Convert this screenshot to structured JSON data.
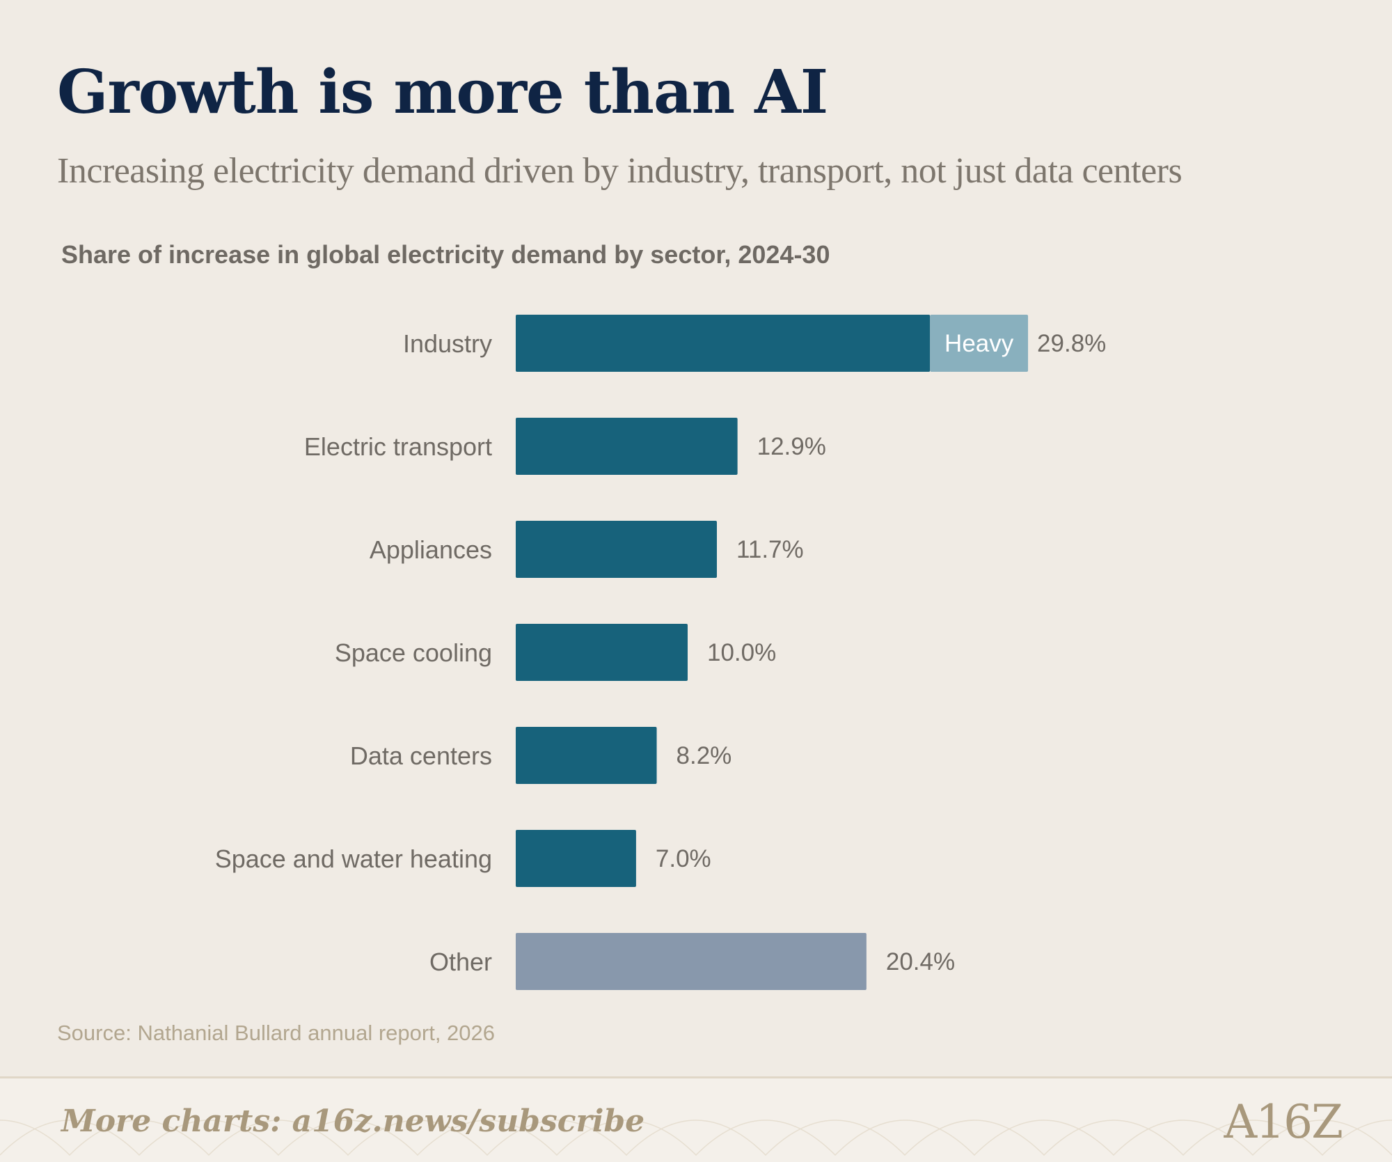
{
  "header": {
    "title": "Growth is more than AI",
    "subtitle": "Increasing electricity demand driven by industry, transport, not just data centers"
  },
  "chart_data": {
    "type": "bar",
    "orientation": "horizontal",
    "title": "Share of increase in global electricity demand by sector, 2024-30",
    "categories": [
      "Industry",
      "Electric transport",
      "Appliances",
      "Space cooling",
      "Data centers",
      "Space and water heating",
      "Other"
    ],
    "values": [
      29.8,
      12.9,
      11.7,
      10.0,
      8.2,
      7.0,
      20.4
    ],
    "value_labels": [
      "29.8%",
      "12.9%",
      "11.7%",
      "10.0%",
      "8.2%",
      "7.0%",
      "20.4%"
    ],
    "segments": {
      "Industry": [
        {
          "name": "",
          "value": 24.1
        },
        {
          "name": "Heavy",
          "value": 5.7
        }
      ]
    },
    "colors": {
      "primary": "#17627b",
      "heavy": "#89b0be",
      "other": "#8898ac"
    },
    "grid": false,
    "legend": "none"
  },
  "source": "Source: Nathanial Bullard annual report, 2026",
  "footer": {
    "link": "More charts: a16z.news/subscribe",
    "logo": "A16Z"
  }
}
